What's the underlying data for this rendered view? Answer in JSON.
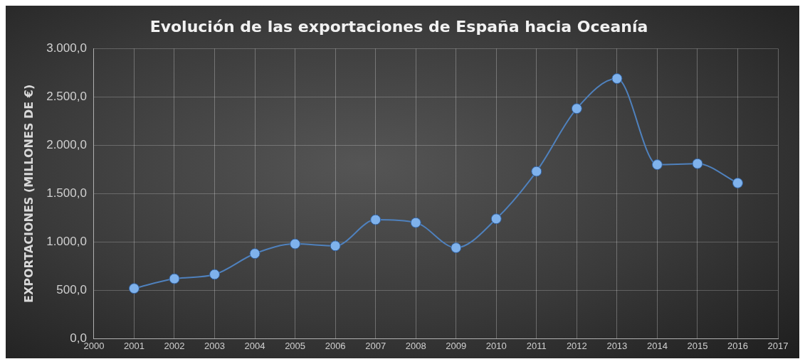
{
  "chart_data": {
    "type": "line",
    "title": "Evolución de las exportaciones de España hacia Oceanía",
    "ylabel": "EXPORTACIONES (MILLONES DE €)",
    "x": [
      2001,
      2002,
      2003,
      2004,
      2005,
      2006,
      2007,
      2008,
      2009,
      2010,
      2011,
      2012,
      2013,
      2014,
      2015,
      2016
    ],
    "series": [
      {
        "color": "#4f81bd",
        "values": [
          520,
          620,
          665,
          880,
          980,
          960,
          1230,
          1200,
          940,
          1240,
          1730,
          2380,
          2690,
          1800,
          1810,
          1610
        ]
      }
    ],
    "xlim": [
      2000,
      2017
    ],
    "xticks": [
      2000,
      2001,
      2002,
      2003,
      2004,
      2005,
      2006,
      2007,
      2008,
      2009,
      2010,
      2011,
      2012,
      2013,
      2014,
      2015,
      2016,
      2017
    ],
    "ylim": [
      0,
      3000
    ],
    "yticks": [
      {
        "value": 0,
        "label": "0,0"
      },
      {
        "value": 500,
        "label": "500,0"
      },
      {
        "value": 1000,
        "label": "1.000,0"
      },
      {
        "value": 1500,
        "label": "1.500,0"
      },
      {
        "value": 2000,
        "label": "2.000,0"
      },
      {
        "value": 2500,
        "label": "2.500,0"
      },
      {
        "value": 3000,
        "label": "3.000,0"
      }
    ],
    "grid": true,
    "legend": false,
    "marker": "circle",
    "line_style": "solid"
  }
}
